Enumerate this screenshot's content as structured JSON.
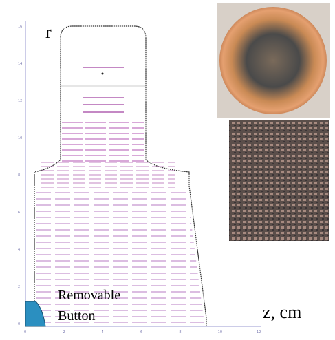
{
  "labels": {
    "r_axis": "r",
    "z_axis": "z, cm",
    "button": [
      "Removable",
      "Button"
    ]
  },
  "axes": {
    "y_ticks": [
      "16",
      "14",
      "12",
      "10",
      "8",
      "6",
      "4",
      "2",
      "0"
    ],
    "x_ticks": [
      "0",
      "2",
      "4",
      "6",
      "8",
      "10",
      "12"
    ]
  }
}
